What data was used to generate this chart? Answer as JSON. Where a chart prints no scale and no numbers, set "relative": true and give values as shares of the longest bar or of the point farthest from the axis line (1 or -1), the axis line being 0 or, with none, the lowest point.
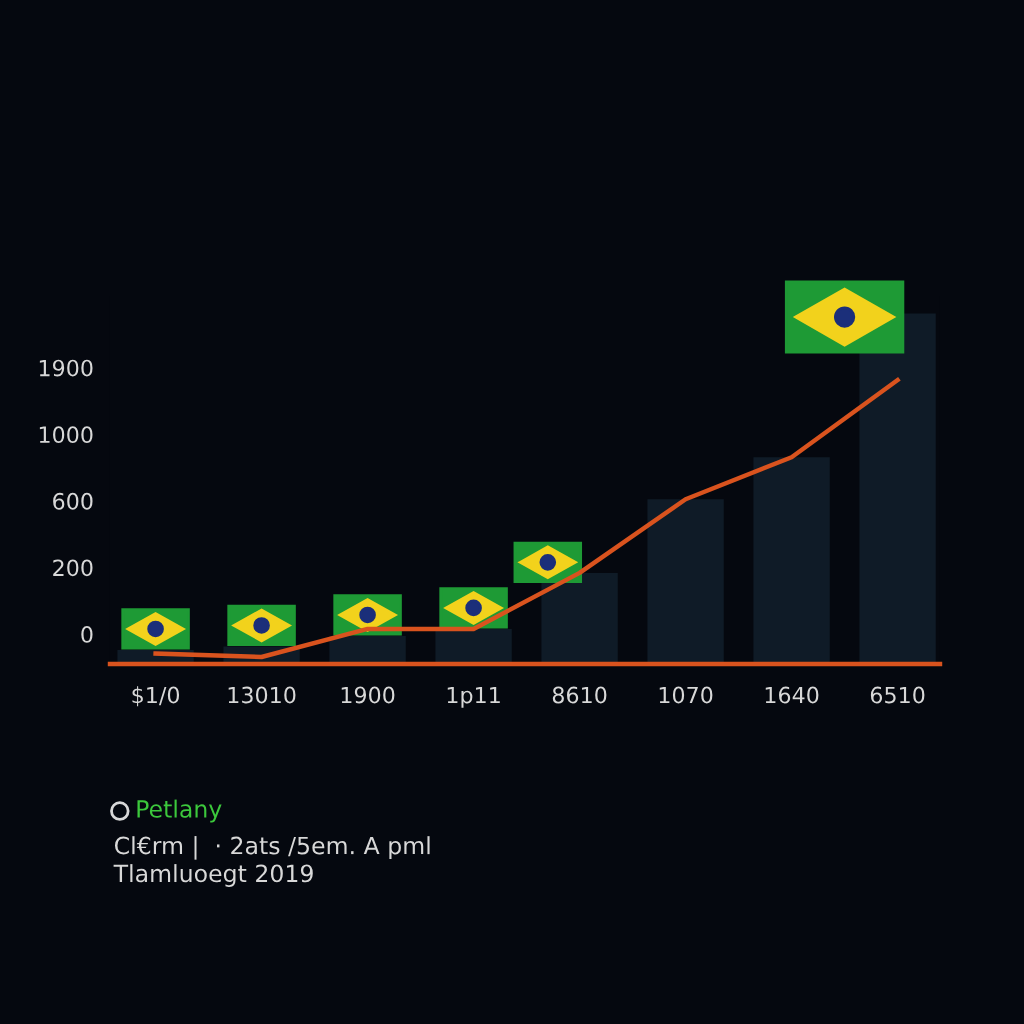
{
  "chart_data": {
    "type": "bar",
    "relative": true,
    "categories": [
      "$1/0",
      "13010",
      "1900",
      "1p11",
      "8610",
      "1070",
      "1640",
      "6510"
    ],
    "series": [
      {
        "color": "#0f1b27",
        "values": [
          0.04,
          0.05,
          0.08,
          0.1,
          0.26,
          0.47,
          0.59,
          1.0
        ]
      },
      {
        "type": "line",
        "color": "#d9531e",
        "values": [
          0.03,
          0.02,
          0.1,
          0.1,
          0.26,
          0.47,
          0.59,
          0.81
        ]
      }
    ],
    "annotations": [
      "1900",
      "1000",
      "600",
      "200",
      "0",
      "Petlany",
      "Cl€rm |  · 2ats /5em. A pml",
      "Tlamluoegt 2019"
    ]
  }
}
